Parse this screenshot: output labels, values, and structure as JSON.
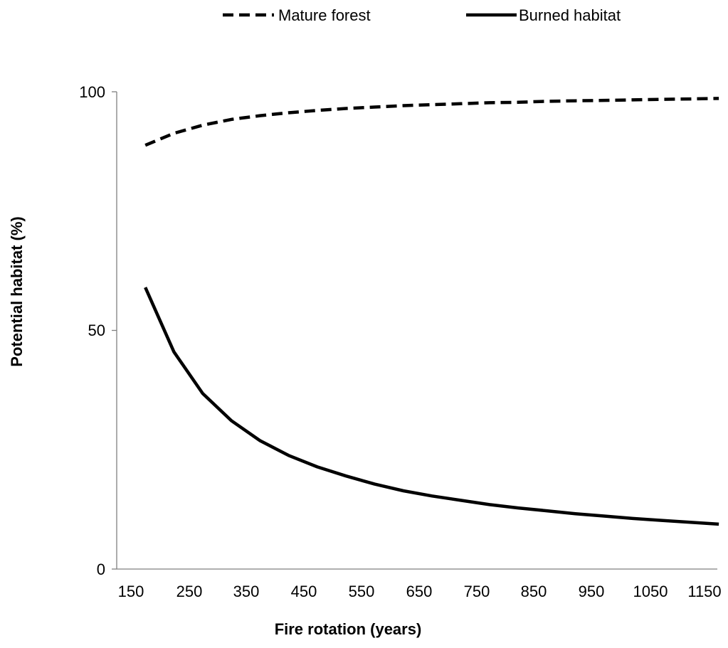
{
  "chart_data": {
    "type": "line",
    "title": "",
    "xlabel": "Fire rotation (years)",
    "ylabel": "Potential habitat (%)",
    "xlim": [
      150,
      1150
    ],
    "ylim": [
      0,
      100
    ],
    "xticks": [
      "150",
      "250",
      "350",
      "450",
      "550",
      "650",
      "750",
      "850",
      "950",
      "1050",
      "1150"
    ],
    "yticks": [
      "0",
      "50",
      "100"
    ],
    "legend": {
      "placement": "top"
    },
    "grid": false,
    "series": [
      {
        "name": "Mature forest",
        "style": "dashed",
        "color": "#000000",
        "x": [
          175,
          225,
          275,
          325,
          375,
          425,
          475,
          525,
          575,
          625,
          675,
          725,
          775,
          825,
          875,
          925,
          975,
          1025,
          1075,
          1125,
          1175
        ],
        "y": [
          88.8,
          91.3,
          93.0,
          94.2,
          95.0,
          95.6,
          96.1,
          96.5,
          96.8,
          97.1,
          97.3,
          97.5,
          97.7,
          97.8,
          98.0,
          98.1,
          98.2,
          98.3,
          98.4,
          98.5,
          98.6
        ]
      },
      {
        "name": "Burned habitat",
        "style": "solid",
        "color": "#000000",
        "x": [
          175,
          225,
          275,
          325,
          375,
          425,
          475,
          525,
          575,
          625,
          675,
          725,
          775,
          825,
          875,
          925,
          975,
          1025,
          1075,
          1125,
          1175
        ],
        "y": [
          59,
          45.5,
          36.8,
          31.1,
          26.9,
          23.8,
          21.4,
          19.5,
          17.8,
          16.4,
          15.3,
          14.4,
          13.5,
          12.8,
          12.2,
          11.6,
          11.1,
          10.6,
          10.2,
          9.8,
          9.4
        ]
      }
    ]
  }
}
